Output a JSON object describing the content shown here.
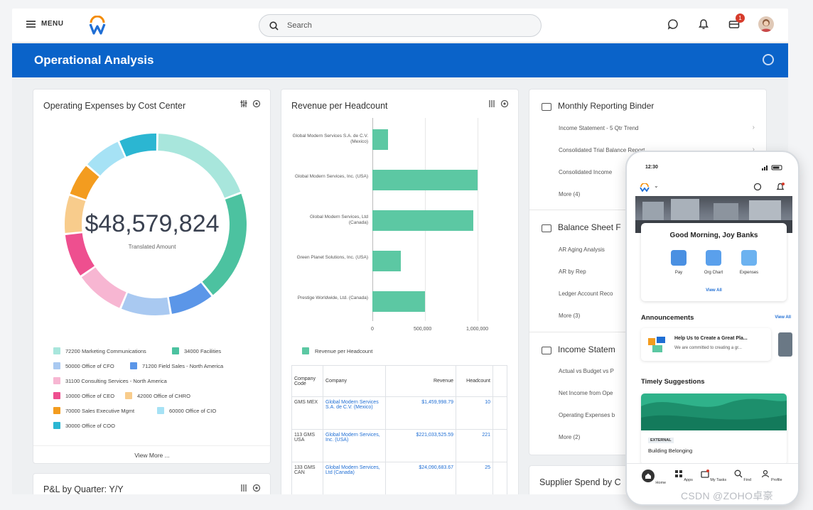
{
  "header": {
    "menu_label": "MENU",
    "search_placeholder": "Search",
    "notification_count": "1"
  },
  "banner": {
    "title": "Operational Analysis"
  },
  "opex_card": {
    "title": "Operating Expenses by Cost Center",
    "total": "$48,579,824",
    "total_label": "Translated Amount",
    "view_more": "View More ...",
    "legend": [
      {
        "label": "72200 Marketing Communications",
        "color": "#a8e6dc"
      },
      {
        "label": "34000 Facilities",
        "color": "#4cc2a0"
      },
      {
        "label": "50000 Office of CFO",
        "color": "#a9c9f1"
      },
      {
        "label": "71200 Field Sales - North America",
        "color": "#5b96e8"
      },
      {
        "label": "31100 Consulting Services - North America",
        "color": "#f7b6d2"
      },
      {
        "label": "10000 Office of CEO",
        "color": "#ee4f8f"
      },
      {
        "label": "42000 Office of CHRO",
        "color": "#f8cc8c"
      },
      {
        "label": "70000 Sales Executive Mgmt",
        "color": "#f39c1f"
      },
      {
        "label": "60000 Office of CIO",
        "color": "#a6e2f5"
      },
      {
        "label": "30000 Office of COO",
        "color": "#2bb6d2"
      }
    ]
  },
  "pl_card": {
    "title": "P&L by Quarter: Y/Y"
  },
  "revenue_card": {
    "title": "Revenue per Headcount",
    "legend_label": "Revenue per Headcount",
    "table_headers": [
      "Company Code",
      "Company",
      "Revenue",
      "Headcount"
    ],
    "rows": [
      {
        "code": "GMS MEX",
        "company": "Global Modern Services S.A. de C.V. (Mexico)",
        "revenue": "$1,459,998.79",
        "headcount": "10"
      },
      {
        "code": "113 GMS USA",
        "company": "Global Modern Services, Inc. (USA)",
        "revenue": "$221,033,525.59",
        "headcount": "221"
      },
      {
        "code": "133 GMS CAN",
        "company": "Global Modern Services, Ltd (Canada)",
        "revenue": "$24,090,683.67",
        "headcount": "25"
      }
    ]
  },
  "chart_data": {
    "type": "bar",
    "orientation": "horizontal",
    "title": "Revenue per Headcount",
    "categories": [
      "Global Modern Services S.A. de C.V. (Mexico)",
      "Global Modern Services, Inc. (USA)",
      "Global Modern Services, Ltd (Canada)",
      "Green Planet Solutions, Inc. (USA)",
      "Prestige Worldwide, Ltd. (Canada)"
    ],
    "series": [
      {
        "name": "Revenue per Headcount",
        "values": [
          146000,
          1000000,
          960000,
          270000,
          500000
        ]
      }
    ],
    "xlim": [
      0,
      1000000
    ],
    "xticks": [
      "0",
      "500,000",
      "1,000,000"
    ],
    "grid": true,
    "legend": "bottom-left"
  },
  "binder_card": {
    "sections": [
      {
        "title": "Monthly Reporting Binder",
        "items": [
          "Income Statement - 5 Qtr Trend",
          "Consolidated Trial Balance Report",
          "Consolidated Income",
          "More (4)"
        ]
      },
      {
        "title": "Balance Sheet F",
        "items": [
          "AR Aging Analysis",
          "AR by Rep",
          "Ledger Account Reco",
          "More (3)"
        ]
      },
      {
        "title": "Income Statem",
        "items": [
          "Actual vs Budget vs P",
          "Net Income from Ope",
          "Operating Expenses b",
          "More (2)"
        ]
      }
    ]
  },
  "supplier_card": {
    "title": "Supplier Spend by C"
  },
  "phone": {
    "time": "12:30",
    "greeting": "Good Morning, Joy Banks",
    "apps": [
      "Pay",
      "Org Chart",
      "Expenses"
    ],
    "view_all": "View All",
    "announcements_title": "Announcements",
    "announcements_link": "View All",
    "announcement_title": "Help Us to Create a Great Pla...",
    "announcement_sub": "We are committed to creating a gr...",
    "suggestions_title": "Timely Suggestions",
    "suggestion_tag": "EXTERNAL",
    "suggestion_title": "Building Belonging",
    "tabs": [
      "Home",
      "Apps",
      "My Tasks",
      "Find",
      "Profile"
    ]
  },
  "watermark": "CSDN @ZOHO卓豪"
}
